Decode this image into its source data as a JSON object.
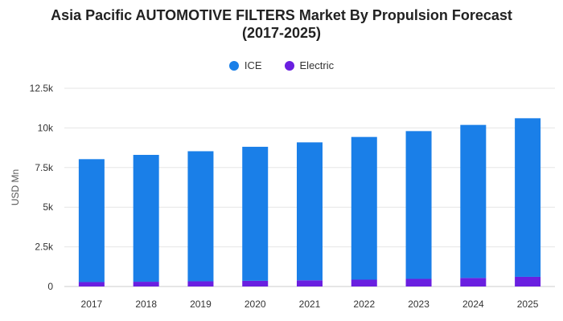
{
  "chart_data": {
    "type": "bar",
    "stacked": true,
    "title": "Asia Pacific AUTOMOTIVE FILTERS Market By Propulsion Forecast (2017-2025)",
    "title_lines": [
      "Asia Pacific AUTOMOTIVE FILTERS Market By Propulsion Forecast",
      "(2017-2025)"
    ],
    "xlabel": "",
    "ylabel": "USD Mn",
    "ylim": [
      0,
      12500
    ],
    "yticks": [
      0,
      2500,
      5000,
      7500,
      10000,
      12500
    ],
    "ytick_labels": [
      "0",
      "2.5k",
      "5k",
      "7.5k",
      "10k",
      "12.5k"
    ],
    "grid": true,
    "legend_position": "top-center",
    "categories": [
      "2017",
      "2018",
      "2019",
      "2020",
      "2021",
      "2022",
      "2023",
      "2024",
      "2025"
    ],
    "series": [
      {
        "name": "ICE",
        "color": "#1a7fe8",
        "values": [
          7750,
          8000,
          8200,
          8450,
          8700,
          9000,
          9320,
          9650,
          10000
        ]
      },
      {
        "name": "Electric",
        "color": "#6a1fe0",
        "values": [
          280,
          300,
          330,
          360,
          390,
          430,
          480,
          540,
          610
        ]
      }
    ]
  }
}
